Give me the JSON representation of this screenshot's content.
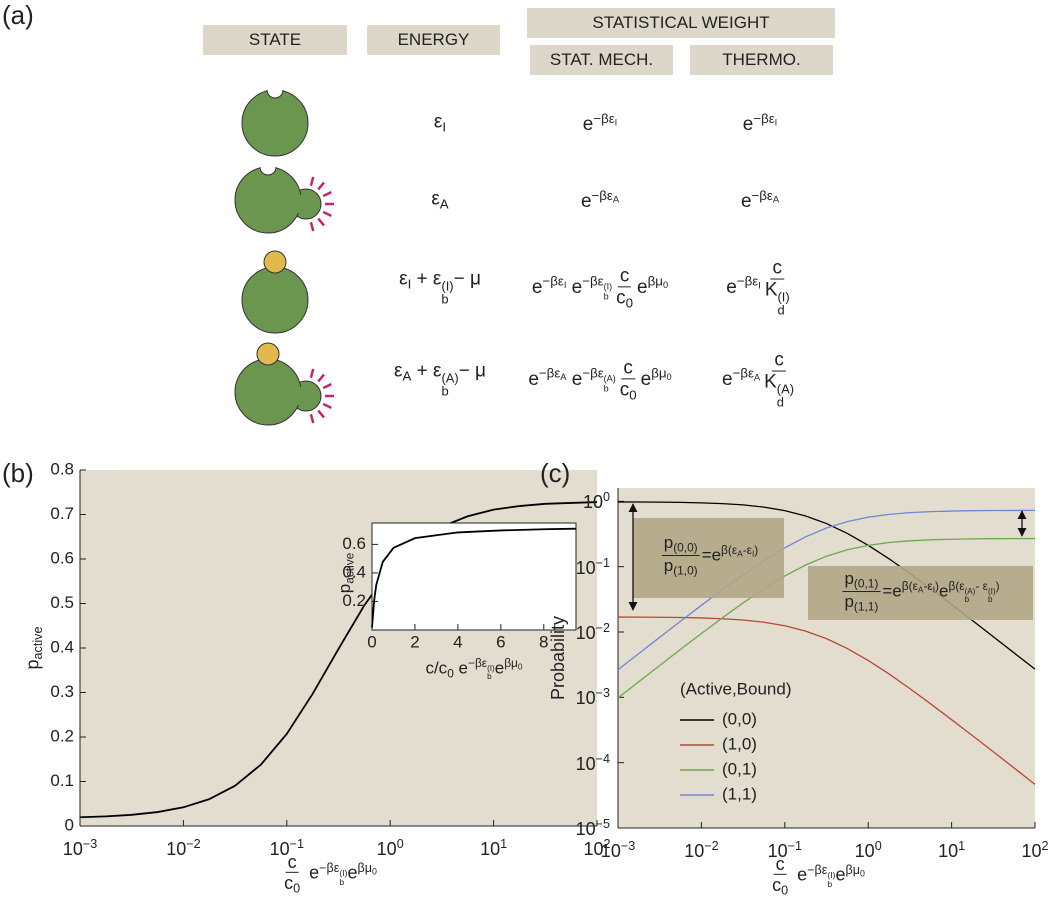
{
  "panel_labels": [
    "(a)",
    "(b)",
    "(c)"
  ],
  "table": {
    "headers": {
      "state": "STATE",
      "energy": "ENERGY",
      "weight": "STATISTICAL WEIGHT",
      "stat_mech": "STAT. MECH.",
      "thermo": "THERMO."
    },
    "rows": [
      [
        [
          "ε",
          {
            "sub": [
              "I"
            ]
          }
        ],
        [
          "e",
          {
            "sup": [
              "−βε",
              {
                "sub": [
                  "I"
                ]
              }
            ]
          }
        ],
        [
          "e",
          {
            "sup": [
              "−βε",
              {
                "sub": [
                  "I"
                ]
              }
            ]
          }
        ]
      ],
      [
        [
          "ε",
          {
            "sub": [
              "A"
            ]
          }
        ],
        [
          "e",
          {
            "sup": [
              "−βε",
              {
                "sub": [
                  "A"
                ]
              }
            ]
          }
        ],
        [
          "e",
          {
            "sup": [
              "−βε",
              {
                "sub": [
                  "A"
                ]
              }
            ]
          }
        ]
      ],
      [
        [
          "ε",
          {
            "sub": [
              "I"
            ]
          },
          " + ε",
          {
            "sub": [
              "b"
            ],
            "sup": [
              "(I)"
            ]
          },
          "− μ"
        ],
        [
          "e",
          {
            "sup": [
              "−βε",
              {
                "sub": [
                  "I"
                ]
              }
            ]
          },
          " e",
          {
            "sup": [
              "−βε",
              {
                "sub": [
                  "b"
                ],
                "sup": [
                  "(I)"
                ]
              }
            ]
          },
          {
            "num": [
              "c"
            ],
            "den": [
              "c",
              {
                "sub": [
                  "0"
                ]
              }
            ]
          },
          "e",
          {
            "sup": [
              "βμ",
              {
                "sub": [
                  "0"
                ]
              }
            ]
          }
        ],
        [
          "e",
          {
            "sup": [
              "−βε",
              {
                "sub": [
                  "I"
                ]
              }
            ]
          },
          {
            "num": [
              "c"
            ],
            "den": [
              "K",
              {
                "sub": [
                  "d"
                ],
                "sup": [
                  "(I)"
                ]
              }
            ]
          }
        ]
      ],
      [
        [
          "ε",
          {
            "sub": [
              "A"
            ]
          },
          " + ε",
          {
            "sub": [
              "b"
            ],
            "sup": [
              "(A)"
            ]
          },
          "− μ"
        ],
        [
          "e",
          {
            "sup": [
              "−βε",
              {
                "sub": [
                  "A"
                ]
              }
            ]
          },
          " e",
          {
            "sup": [
              "−βε",
              {
                "sub": [
                  "b"
                ],
                "sup": [
                  "(A)"
                ]
              }
            ]
          },
          {
            "num": [
              "c"
            ],
            "den": [
              "c",
              {
                "sub": [
                  "0"
                ]
              }
            ]
          },
          "e",
          {
            "sup": [
              "βμ",
              {
                "sub": [
                  "0"
                ]
              }
            ]
          }
        ],
        [
          "e",
          {
            "sup": [
              "−βε",
              {
                "sub": [
                  "A"
                ]
              }
            ]
          },
          {
            "num": [
              "c"
            ],
            "den": [
              "K",
              {
                "sub": [
                  "d"
                ],
                "sup": [
                  "(A)"
                ]
              }
            ]
          }
        ]
      ]
    ]
  },
  "chart_data": [
    {
      "type": "line",
      "xscale": "log",
      "x_label": [
        {
          "num": [
            "c"
          ],
          "den": [
            "c",
            {
              "sub": [
                "0"
              ]
            }
          ]
        },
        " e",
        {
          "sup": [
            "−βε",
            {
              "sub": [
                "b"
              ],
              "sup": [
                "(I)"
              ]
            }
          ]
        },
        "e",
        {
          "sup": [
            "βμ",
            {
              "sub": [
                "0"
              ]
            }
          ]
        }
      ],
      "y_label": [
        "p",
        {
          "sub": [
            "active"
          ]
        }
      ],
      "x": [
        0.001,
        0.001778,
        0.003162,
        0.005623,
        0.01,
        0.01778,
        0.03162,
        0.05623,
        0.1,
        0.1778,
        0.3162,
        0.5623,
        1,
        1.778,
        3.162,
        5.623,
        10,
        17.78,
        31.62,
        56.23,
        100
      ],
      "series": [
        {
          "color": "#000000",
          "values": [
            0.0196,
            0.0216,
            0.0251,
            0.0313,
            0.042,
            0.0603,
            0.0905,
            0.138,
            0.207,
            0.297,
            0.398,
            0.496,
            0.576,
            0.634,
            0.673,
            0.696,
            0.711,
            0.719,
            0.724,
            0.726,
            0.728
          ]
        }
      ],
      "xlim": [
        0.001,
        100
      ],
      "xticks": [
        {
          "value": 0.001,
          "label": [
            "10",
            {
              "sup": [
                "−3"
              ]
            }
          ]
        },
        {
          "value": 0.01,
          "label": [
            "10",
            {
              "sup": [
                "−2"
              ]
            }
          ]
        },
        {
          "value": 0.1,
          "label": [
            "10",
            {
              "sup": [
                "−1"
              ]
            }
          ]
        },
        {
          "value": 1,
          "label": [
            "10",
            {
              "sup": [
                "0"
              ]
            }
          ]
        },
        {
          "value": 10,
          "label": [
            "10",
            {
              "sup": [
                "1"
              ]
            }
          ]
        },
        {
          "value": 100,
          "label": [
            "10",
            {
              "sup": [
                "2"
              ]
            }
          ]
        }
      ],
      "ylim": [
        0,
        0.8
      ],
      "yticks": [
        0,
        0.1,
        0.2,
        0.3,
        0.4,
        0.5,
        0.6,
        0.7,
        0.8
      ],
      "background": "#e3ddd0"
    },
    {
      "type": "line",
      "xscale": "linear",
      "x_label": [
        "c/c",
        {
          "sub": [
            "0"
          ]
        },
        " e",
        {
          "sup": [
            "−βε",
            {
              "sub": [
                "b"
              ],
              "sup": [
                "(I)"
              ]
            }
          ]
        },
        "e",
        {
          "sup": [
            "βμ",
            {
              "sub": [
                "0"
              ]
            }
          ]
        }
      ],
      "y_label": [
        "p",
        {
          "sub": [
            "active"
          ]
        }
      ],
      "x": [
        0,
        0.1,
        0.2,
        0.5,
        1,
        2,
        4,
        6,
        8,
        9.5
      ],
      "series": [
        {
          "color": "#000000",
          "values": [
            0.017,
            0.207,
            0.317,
            0.477,
            0.576,
            0.644,
            0.684,
            0.698,
            0.706,
            0.71
          ]
        }
      ],
      "xlim": [
        0,
        9.5
      ],
      "xticks": [
        0,
        2,
        4,
        6,
        8
      ],
      "ylim": [
        0,
        0.75
      ],
      "yticks": [
        0.2,
        0.4,
        0.6
      ],
      "background": "#ffffff"
    },
    {
      "type": "line",
      "xscale": "log",
      "yscale": "log",
      "x_label": [
        {
          "num": [
            "c"
          ],
          "den": [
            "c",
            {
              "sub": [
                "0"
              ]
            }
          ]
        },
        " e",
        {
          "sup": [
            "−βε",
            {
              "sub": [
                "b"
              ],
              "sup": [
                "(I)"
              ]
            }
          ]
        },
        "e",
        {
          "sup": [
            "βμ",
            {
              "sub": [
                "0"
              ]
            }
          ]
        }
      ],
      "y_label": [
        "Probability"
      ],
      "x": [
        0.001,
        0.001778,
        0.003162,
        0.005623,
        0.01,
        0.01778,
        0.03162,
        0.05623,
        0.1,
        0.1778,
        0.3162,
        0.5623,
        1,
        1.778,
        3.162,
        5.623,
        10,
        17.78,
        31.62,
        56.23,
        100
      ],
      "legend_title": "(Active,Bound)",
      "legend": "bottom-left",
      "series": [
        {
          "name": "(0,0)",
          "color": "#000000",
          "values": [
            0.979,
            0.977,
            0.972,
            0.963,
            0.948,
            0.923,
            0.882,
            0.816,
            0.721,
            0.597,
            0.457,
            0.323,
            0.212,
            0.132,
            0.0786,
            0.0458,
            0.0263,
            0.015,
            0.00847,
            0.00478,
            0.0027
          ]
        },
        {
          "name": "(1,0)",
          "color": "#b9473a",
          "values": [
            0.01694,
            0.0169,
            0.01681,
            0.01667,
            0.01641,
            0.01597,
            0.01525,
            0.01412,
            0.01247,
            0.01033,
            0.00791,
            0.00558,
            0.00367,
            0.00228,
            0.00136,
            0.000792,
            0.000455,
            0.000259,
            0.000147,
            8.27e-05,
            4.66e-05
          ]
        },
        {
          "name": "(0,1)",
          "color": "#6ea84e",
          "values": [
            0.000979,
            0.001736,
            0.003073,
            0.005417,
            0.009485,
            0.01642,
            0.02788,
            0.04589,
            0.0721,
            0.1061,
            0.1446,
            0.1815,
            0.212,
            0.2341,
            0.2486,
            0.2576,
            0.263,
            0.2662,
            0.268,
            0.2689,
            0.2695
          ]
        },
        {
          "name": "(1,1)",
          "color": "#7285d6",
          "values": [
            0.002644,
            0.004688,
            0.008297,
            0.01463,
            0.02561,
            0.04433,
            0.07527,
            0.1239,
            0.1946,
            0.2866,
            0.3904,
            0.4901,
            0.5724,
            0.632,
            0.6712,
            0.6955,
            0.7101,
            0.7187,
            0.7235,
            0.7261,
            0.7278
          ]
        }
      ],
      "xlim": [
        0.001,
        100
      ],
      "xticks": [
        {
          "value": 0.001,
          "label": [
            "10",
            {
              "sup": [
                "−3"
              ]
            }
          ]
        },
        {
          "value": 0.01,
          "label": [
            "10",
            {
              "sup": [
                "−2"
              ]
            }
          ]
        },
        {
          "value": 0.1,
          "label": [
            "10",
            {
              "sup": [
                "−1"
              ]
            }
          ]
        },
        {
          "value": 1,
          "label": [
            "10",
            {
              "sup": [
                "0"
              ]
            }
          ]
        },
        {
          "value": 10,
          "label": [
            "10",
            {
              "sup": [
                "1"
              ]
            }
          ]
        },
        {
          "value": 100,
          "label": [
            "10",
            {
              "sup": [
                "2"
              ]
            }
          ]
        }
      ],
      "ylim": [
        1e-05,
        1.6
      ],
      "yticks": [
        {
          "value": 1e-05,
          "label": [
            "10",
            {
              "sup": [
                "−5"
              ]
            }
          ]
        },
        {
          "value": 0.0001,
          "label": [
            "10",
            {
              "sup": [
                "−4"
              ]
            }
          ]
        },
        {
          "value": 0.001,
          "label": [
            "10",
            {
              "sup": [
                "−3"
              ]
            }
          ]
        },
        {
          "value": 0.01,
          "label": [
            "10",
            {
              "sup": [
                "−2"
              ]
            }
          ]
        },
        {
          "value": 0.1,
          "label": [
            "10",
            {
              "sup": [
                "−1"
              ]
            }
          ]
        },
        {
          "value": 1,
          "label": [
            "10",
            {
              "sup": [
                "0"
              ]
            }
          ]
        }
      ],
      "background": "#e3ddd0",
      "annotations": [
        [
          {
            "num": [
              "p",
              {
                "sub": [
                  "(0,0)"
                ]
              }
            ],
            "den": [
              "p",
              {
                "sub": [
                  "(1,0)"
                ]
              }
            ]
          },
          "=e",
          {
            "sup": [
              "β(ε",
              {
                "sub": [
                  "A"
                ]
              },
              "-ε",
              {
                "sub": [
                  "I"
                ]
              },
              ")"
            ]
          }
        ],
        [
          {
            "num": [
              "p",
              {
                "sub": [
                  "(0,1)"
                ]
              }
            ],
            "den": [
              "p",
              {
                "sub": [
                  "(1,1)"
                ]
              }
            ]
          },
          "=e",
          {
            "sup": [
              "β(ε",
              {
                "sub": [
                  "A"
                ]
              },
              "-ε",
              {
                "sub": [
                  "I"
                ]
              },
              ")"
            ]
          },
          "e",
          {
            "sup": [
              "β(ε",
              {
                "sub": [
                  "b"
                ],
                "sup": [
                  "(A)"
                ]
              },
              "- ε",
              {
                "sub": [
                  "b"
                ],
                "sup": [
                  "(I)"
                ]
              },
              ")"
            ]
          }
        ]
      ]
    }
  ]
}
